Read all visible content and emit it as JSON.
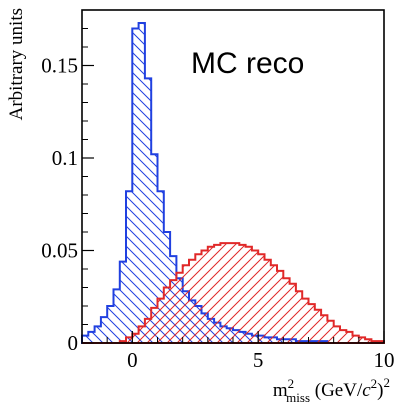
{
  "chart_data": {
    "type": "histogram",
    "title": "MC reco",
    "ylabel": "Arbitrary units",
    "xlabel": {
      "base": "m",
      "sup": "2",
      "sub": "miss",
      "unit_open": " (GeV/",
      "unit_var": "c",
      "unit_var_sup": "2",
      "unit_close": ")",
      "unit_sup": "2"
    },
    "xlim": [
      -2,
      10
    ],
    "ylim": [
      0,
      0.18
    ],
    "xticks": [
      0,
      5,
      10
    ],
    "xtick_labels": [
      "0",
      "5",
      "10"
    ],
    "yticks": [
      0,
      0.05,
      0.1,
      0.15
    ],
    "ytick_labels": [
      "0",
      "0.05",
      "0.1",
      "0.15"
    ],
    "grid": false,
    "legend": "none",
    "bin_edges": [
      -2.0,
      -1.75,
      -1.5,
      -1.25,
      -1.0,
      -0.75,
      -0.5,
      -0.25,
      0.0,
      0.25,
      0.5,
      0.75,
      1.0,
      1.25,
      1.5,
      1.75,
      2.0,
      2.25,
      2.5,
      2.75,
      3.0,
      3.25,
      3.5,
      3.75,
      4.0,
      4.25,
      4.5,
      4.75,
      5.0,
      5.25,
      5.5,
      5.75,
      6.0,
      6.25,
      6.5,
      6.75,
      7.0,
      7.25,
      7.5,
      7.75,
      8.0,
      8.25,
      8.5,
      8.75,
      9.0,
      9.25,
      9.5,
      9.75,
      10.0
    ],
    "series": [
      {
        "color": "#2040e0",
        "hatch": "backslash",
        "values": [
          0.004,
          0.006,
          0.009,
          0.014,
          0.02,
          0.029,
          0.044,
          0.082,
          0.17,
          0.173,
          0.143,
          0.102,
          0.082,
          0.06,
          0.047,
          0.035,
          0.028,
          0.023,
          0.02,
          0.016,
          0.013,
          0.011,
          0.009,
          0.008,
          0.007,
          0.006,
          0.005,
          0.004,
          0.004,
          0.003,
          0.003,
          0.002,
          0.002,
          0.002,
          0.001,
          0.001,
          0.001,
          0.001,
          0.001,
          0.0,
          0.0,
          0.0,
          0.0,
          0.0,
          0.0,
          0.0,
          0.0,
          0.0
        ]
      },
      {
        "color": "#e02828",
        "hatch": "slash",
        "values": [
          0.0,
          0.0,
          0.0,
          0.0,
          0.0,
          0.0,
          0.001,
          0.003,
          0.005,
          0.009,
          0.013,
          0.019,
          0.024,
          0.03,
          0.034,
          0.038,
          0.042,
          0.045,
          0.048,
          0.05,
          0.052,
          0.053,
          0.054,
          0.054,
          0.054,
          0.053,
          0.052,
          0.05,
          0.048,
          0.045,
          0.042,
          0.039,
          0.035,
          0.032,
          0.028,
          0.024,
          0.021,
          0.018,
          0.015,
          0.012,
          0.009,
          0.007,
          0.006,
          0.004,
          0.003,
          0.002,
          0.001,
          0.001
        ]
      }
    ]
  }
}
